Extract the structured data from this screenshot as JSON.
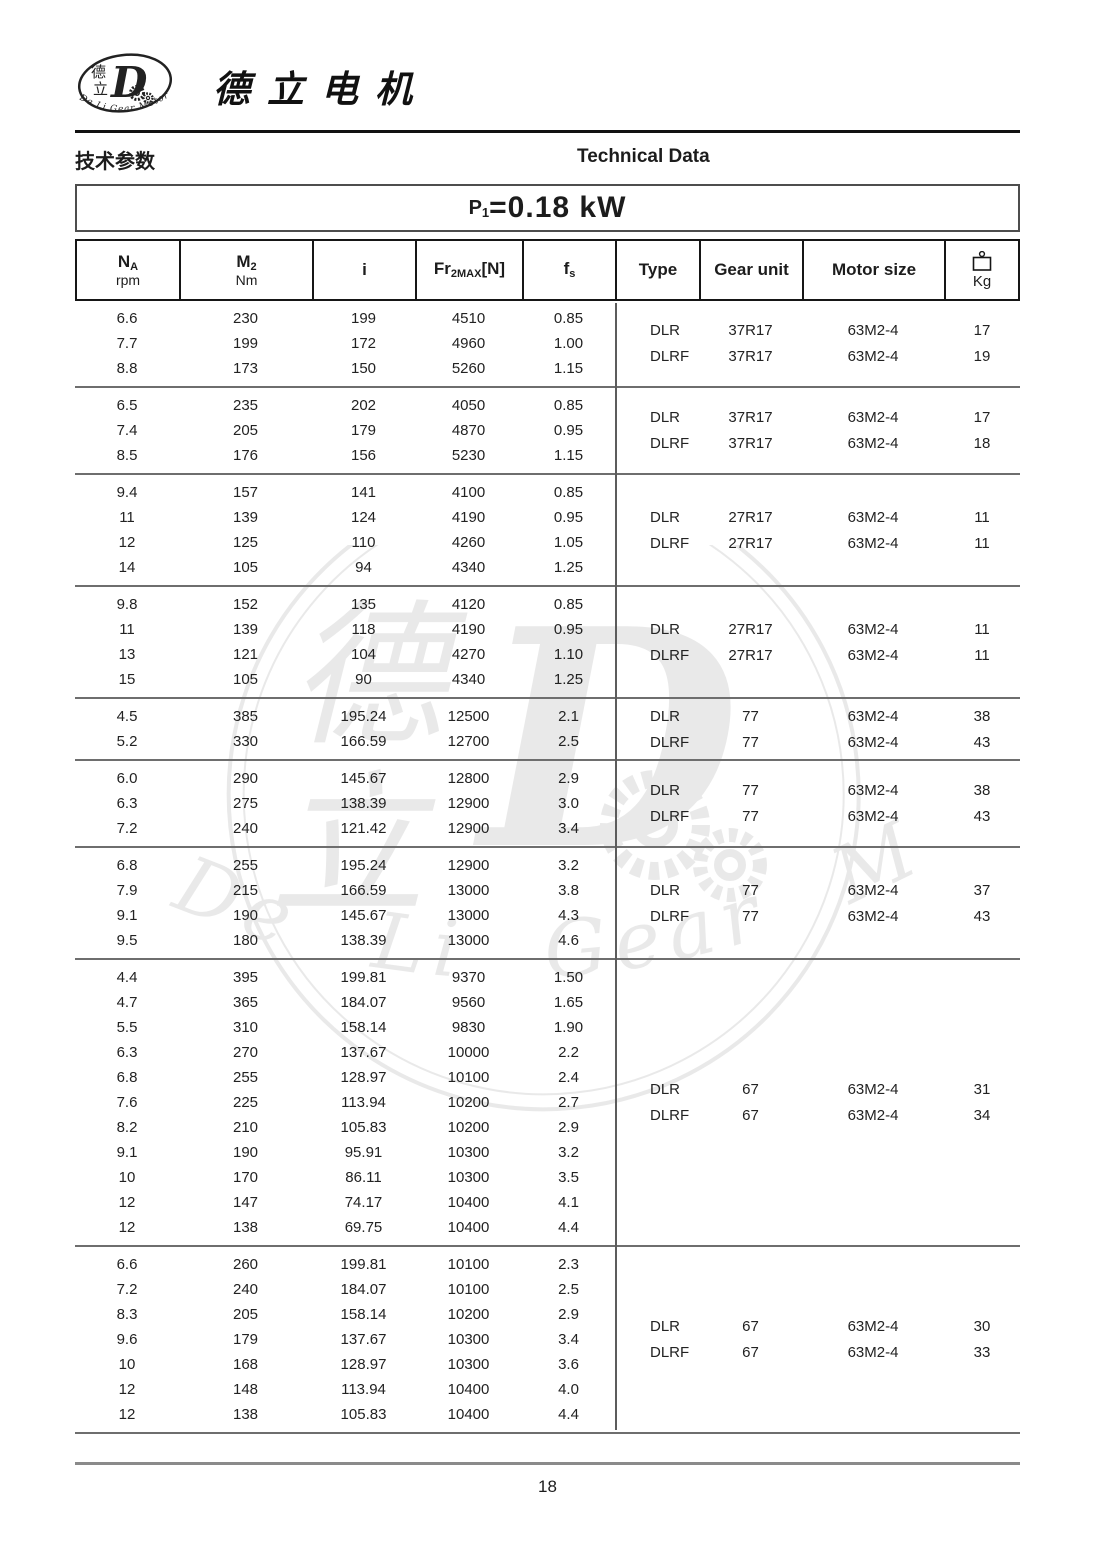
{
  "page": {
    "brand_cn": "德立电机",
    "section_title_cn": "技术参数",
    "section_title_en": "Technical Data",
    "power": {
      "base": "P",
      "sub": "1",
      "value": "=0.18 kW"
    },
    "page_number": "18"
  },
  "logo": {
    "cn_top": "德",
    "cn_bottom": "立",
    "letter": "D",
    "arc_text": "De Li Gear Motor"
  },
  "watermark": {
    "cn_top": "德",
    "cn_bottom": "立",
    "letter": "D",
    "text": "De Li Gear Motor"
  },
  "icons": {
    "kg_icon": "weight-icon",
    "logo_gears": "gear-icon"
  },
  "table": {
    "headers": {
      "na": {
        "base": "N",
        "sub": "A",
        "unit": "rpm"
      },
      "m2": {
        "base": "M",
        "sub": "2",
        "unit": "Nm"
      },
      "i": {
        "label": "i"
      },
      "fr": {
        "base": "Fr",
        "sub": "2MAX",
        "rest": "[N]"
      },
      "fs": {
        "base": "f",
        "sub": "s"
      },
      "type": {
        "label": "Type"
      },
      "gear": {
        "label": "Gear unit"
      },
      "motor": {
        "label": "Motor size"
      },
      "kg": {
        "label": "Kg"
      }
    },
    "groups": [
      {
        "rows": [
          {
            "na": "6.6",
            "m2": "230",
            "i": "199",
            "fr": "4510",
            "fs": "0.85"
          },
          {
            "na": "7.7",
            "m2": "199",
            "i": "172",
            "fr": "4960",
            "fs": "1.00"
          },
          {
            "na": "8.8",
            "m2": "173",
            "i": "150",
            "fr": "5260",
            "fs": "1.15"
          }
        ],
        "right": [
          {
            "type": "DLR",
            "gear": "37R17",
            "motor": "63M2-4",
            "kg": "17"
          },
          {
            "type": "DLRF",
            "gear": "37R17",
            "motor": "63M2-4",
            "kg": "19"
          }
        ]
      },
      {
        "rows": [
          {
            "na": "6.5",
            "m2": "235",
            "i": "202",
            "fr": "4050",
            "fs": "0.85"
          },
          {
            "na": "7.4",
            "m2": "205",
            "i": "179",
            "fr": "4870",
            "fs": "0.95"
          },
          {
            "na": "8.5",
            "m2": "176",
            "i": "156",
            "fr": "5230",
            "fs": "1.15"
          }
        ],
        "right": [
          {
            "type": "DLR",
            "gear": "37R17",
            "motor": "63M2-4",
            "kg": "17"
          },
          {
            "type": "DLRF",
            "gear": "37R17",
            "motor": "63M2-4",
            "kg": "18"
          }
        ]
      },
      {
        "rows": [
          {
            "na": "9.4",
            "m2": "157",
            "i": "141",
            "fr": "4100",
            "fs": "0.85"
          },
          {
            "na": "11",
            "m2": "139",
            "i": "124",
            "fr": "4190",
            "fs": "0.95"
          },
          {
            "na": "12",
            "m2": "125",
            "i": "110",
            "fr": "4260",
            "fs": "1.05"
          },
          {
            "na": "14",
            "m2": "105",
            "i": "94",
            "fr": "4340",
            "fs": "1.25"
          }
        ],
        "right": [
          {
            "type": "DLR",
            "gear": "27R17",
            "motor": "63M2-4",
            "kg": "11"
          },
          {
            "type": "DLRF",
            "gear": "27R17",
            "motor": "63M2-4",
            "kg": "11"
          }
        ]
      },
      {
        "rows": [
          {
            "na": "9.8",
            "m2": "152",
            "i": "135",
            "fr": "4120",
            "fs": "0.85"
          },
          {
            "na": "11",
            "m2": "139",
            "i": "118",
            "fr": "4190",
            "fs": "0.95"
          },
          {
            "na": "13",
            "m2": "121",
            "i": "104",
            "fr": "4270",
            "fs": "1.10"
          },
          {
            "na": "15",
            "m2": "105",
            "i": "90",
            "fr": "4340",
            "fs": "1.25"
          }
        ],
        "right": [
          {
            "type": "DLR",
            "gear": "27R17",
            "motor": "63M2-4",
            "kg": "11"
          },
          {
            "type": "DLRF",
            "gear": "27R17",
            "motor": "63M2-4",
            "kg": "11"
          }
        ]
      },
      {
        "rows": [
          {
            "na": "4.5",
            "m2": "385",
            "i": "195.24",
            "fr": "12500",
            "fs": "2.1"
          },
          {
            "na": "5.2",
            "m2": "330",
            "i": "166.59",
            "fr": "12700",
            "fs": "2.5"
          }
        ],
        "right": [
          {
            "type": "DLR",
            "gear": "77",
            "motor": "63M2-4",
            "kg": "38"
          },
          {
            "type": "DLRF",
            "gear": "77",
            "motor": "63M2-4",
            "kg": "43"
          }
        ]
      },
      {
        "rows": [
          {
            "na": "6.0",
            "m2": "290",
            "i": "145.67",
            "fr": "12800",
            "fs": "2.9"
          },
          {
            "na": "6.3",
            "m2": "275",
            "i": "138.39",
            "fr": "12900",
            "fs": "3.0"
          },
          {
            "na": "7.2",
            "m2": "240",
            "i": "121.42",
            "fr": "12900",
            "fs": "3.4"
          }
        ],
        "right": [
          {
            "type": "DLR",
            "gear": "77",
            "motor": "63M2-4",
            "kg": "38"
          },
          {
            "type": "DLRF",
            "gear": "77",
            "motor": "63M2-4",
            "kg": "43"
          }
        ]
      },
      {
        "rows": [
          {
            "na": "6.8",
            "m2": "255",
            "i": "195.24",
            "fr": "12900",
            "fs": "3.2"
          },
          {
            "na": "7.9",
            "m2": "215",
            "i": "166.59",
            "fr": "13000",
            "fs": "3.8"
          },
          {
            "na": "9.1",
            "m2": "190",
            "i": "145.67",
            "fr": "13000",
            "fs": "4.3"
          },
          {
            "na": "9.5",
            "m2": "180",
            "i": "138.39",
            "fr": "13000",
            "fs": "4.6"
          }
        ],
        "right": [
          {
            "type": "DLR",
            "gear": "77",
            "motor": "63M2-4",
            "kg": "37"
          },
          {
            "type": "DLRF",
            "gear": "77",
            "motor": "63M2-4",
            "kg": "43"
          }
        ]
      },
      {
        "rows": [
          {
            "na": "4.4",
            "m2": "395",
            "i": "199.81",
            "fr": "9370",
            "fs": "1.50"
          },
          {
            "na": "4.7",
            "m2": "365",
            "i": "184.07",
            "fr": "9560",
            "fs": "1.65"
          },
          {
            "na": "5.5",
            "m2": "310",
            "i": "158.14",
            "fr": "9830",
            "fs": "1.90"
          },
          {
            "na": "6.3",
            "m2": "270",
            "i": "137.67",
            "fr": "10000",
            "fs": "2.2"
          },
          {
            "na": "6.8",
            "m2": "255",
            "i": "128.97",
            "fr": "10100",
            "fs": "2.4"
          },
          {
            "na": "7.6",
            "m2": "225",
            "i": "113.94",
            "fr": "10200",
            "fs": "2.7"
          },
          {
            "na": "8.2",
            "m2": "210",
            "i": "105.83",
            "fr": "10200",
            "fs": "2.9"
          },
          {
            "na": "9.1",
            "m2": "190",
            "i": "95.91",
            "fr": "10300",
            "fs": "3.2"
          },
          {
            "na": "10",
            "m2": "170",
            "i": "86.11",
            "fr": "10300",
            "fs": "3.5"
          },
          {
            "na": "12",
            "m2": "147",
            "i": "74.17",
            "fr": "10400",
            "fs": "4.1"
          },
          {
            "na": "12",
            "m2": "138",
            "i": "69.75",
            "fr": "10400",
            "fs": "4.4"
          }
        ],
        "right": [
          {
            "type": "DLR",
            "gear": "67",
            "motor": "63M2-4",
            "kg": "31"
          },
          {
            "type": "DLRF",
            "gear": "67",
            "motor": "63M2-4",
            "kg": "34"
          }
        ]
      },
      {
        "rows": [
          {
            "na": "6.6",
            "m2": "260",
            "i": "199.81",
            "fr": "10100",
            "fs": "2.3"
          },
          {
            "na": "7.2",
            "m2": "240",
            "i": "184.07",
            "fr": "10100",
            "fs": "2.5"
          },
          {
            "na": "8.3",
            "m2": "205",
            "i": "158.14",
            "fr": "10200",
            "fs": "2.9"
          },
          {
            "na": "9.6",
            "m2": "179",
            "i": "137.67",
            "fr": "10300",
            "fs": "3.4"
          },
          {
            "na": "10",
            "m2": "168",
            "i": "128.97",
            "fr": "10300",
            "fs": "3.6"
          },
          {
            "na": "12",
            "m2": "148",
            "i": "113.94",
            "fr": "10400",
            "fs": "4.0"
          },
          {
            "na": "12",
            "m2": "138",
            "i": "105.83",
            "fr": "10400",
            "fs": "4.4"
          }
        ],
        "right": [
          {
            "type": "DLR",
            "gear": "67",
            "motor": "63M2-4",
            "kg": "30"
          },
          {
            "type": "DLRF",
            "gear": "67",
            "motor": "63M2-4",
            "kg": "33"
          }
        ]
      }
    ]
  }
}
